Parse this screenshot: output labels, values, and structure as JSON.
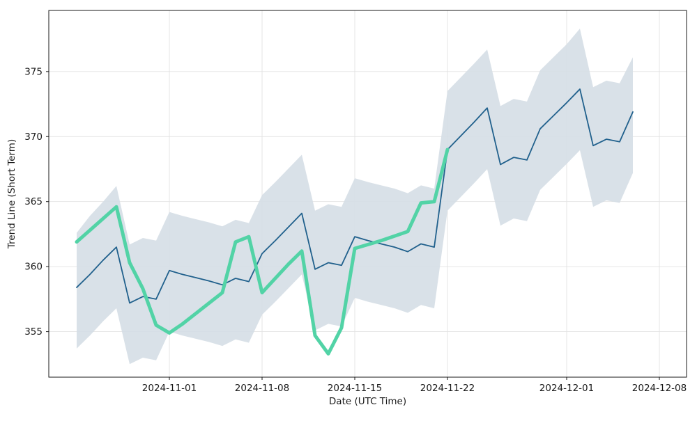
{
  "chart_data": {
    "type": "line",
    "title": "",
    "xlabel": "Date (UTC Time)",
    "ylabel": "Trend Line (Short Term)",
    "grid": true,
    "legend": false,
    "ylim": [
      351.5,
      379.7
    ],
    "y_ticks": [
      355,
      360,
      365,
      370,
      375
    ],
    "x_tick_labels": [
      "2024-11-01",
      "2024-11-08",
      "2024-11-15",
      "2024-11-22",
      "2024-12-01",
      "2024-12-08"
    ],
    "dates": [
      "2024-10-25",
      "2024-10-26",
      "2024-10-27",
      "2024-10-28",
      "2024-10-29",
      "2024-10-30",
      "2024-10-31",
      "2024-11-01",
      "2024-11-02",
      "2024-11-03",
      "2024-11-04",
      "2024-11-05",
      "2024-11-06",
      "2024-11-07",
      "2024-11-08",
      "2024-11-09",
      "2024-11-10",
      "2024-11-11",
      "2024-11-12",
      "2024-11-13",
      "2024-11-14",
      "2024-11-15",
      "2024-11-16",
      "2024-11-17",
      "2024-11-18",
      "2024-11-19",
      "2024-11-20",
      "2024-11-21",
      "2024-11-22",
      "2024-11-23",
      "2024-11-24",
      "2024-11-25",
      "2024-11-26",
      "2024-11-27",
      "2024-11-28",
      "2024-11-29",
      "2024-11-30",
      "2024-12-01",
      "2024-12-02",
      "2024-12-03",
      "2024-12-04",
      "2024-12-05",
      "2024-12-06"
    ],
    "series": [
      {
        "name": "forecast-line",
        "color": "#20608c",
        "line_width": 1.8,
        "values": [
          358.4,
          359.4,
          360.5,
          361.5,
          357.2,
          357.7,
          357.5,
          359.7,
          359.4,
          359.15,
          358.9,
          358.6,
          359.1,
          358.85,
          361.0,
          362.0,
          363.05,
          364.1,
          359.8,
          360.3,
          360.1,
          362.3,
          362.0,
          361.75,
          361.5,
          361.15,
          361.75,
          361.5,
          369.0,
          370.05,
          371.1,
          372.2,
          367.85,
          368.4,
          368.2,
          370.6,
          371.6,
          372.6,
          373.65,
          369.3,
          369.8,
          369.6,
          371.9
        ]
      },
      {
        "name": "trend-short-term-line",
        "color": "#52d3a6",
        "line_width": 5,
        "values": [
          361.9,
          362.8,
          363.7,
          364.6,
          360.3,
          358.3,
          355.5,
          354.9,
          355.6,
          356.4,
          357.2,
          358.0,
          361.9,
          362.3,
          358.0,
          359.1,
          360.2,
          361.2,
          354.7,
          353.3,
          355.3,
          361.4,
          361.7,
          362.0,
          362.35,
          362.7,
          364.9,
          365.0,
          369.0
        ]
      }
    ],
    "band": {
      "name": "confidence-band",
      "color": "#d5dee5",
      "upper": [
        362.6,
        363.9,
        365.0,
        366.2,
        361.7,
        362.2,
        362.0,
        364.2,
        363.9,
        363.65,
        363.4,
        363.1,
        363.6,
        363.35,
        365.5,
        366.5,
        367.55,
        368.6,
        364.3,
        364.8,
        364.6,
        366.8,
        366.5,
        366.25,
        366.0,
        365.65,
        366.25,
        366.0,
        373.5,
        374.55,
        375.6,
        376.7,
        372.35,
        372.9,
        372.7,
        375.1,
        376.1,
        377.1,
        378.3,
        373.8,
        374.3,
        374.1,
        376.1
      ],
      "lower": [
        353.7,
        354.7,
        355.8,
        356.8,
        352.5,
        353.0,
        352.8,
        355.0,
        354.7,
        354.45,
        354.2,
        353.9,
        354.4,
        354.15,
        356.3,
        357.3,
        358.35,
        359.4,
        355.1,
        355.6,
        355.4,
        357.6,
        357.3,
        357.05,
        356.8,
        356.45,
        357.05,
        356.8,
        364.3,
        365.35,
        366.4,
        367.5,
        363.15,
        363.7,
        363.5,
        365.9,
        366.9,
        367.9,
        368.95,
        364.6,
        365.1,
        364.9,
        367.2
      ]
    },
    "colors": {
      "background": "#ffffff",
      "grid": "#e2e2e2",
      "spine": "#1a1a1a",
      "text": "#1a1a1a"
    }
  }
}
